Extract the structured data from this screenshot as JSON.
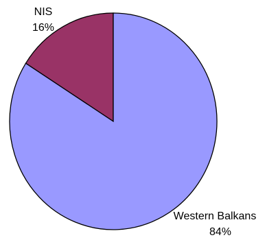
{
  "chart_data": {
    "type": "pie",
    "slices": [
      {
        "label": "NIS",
        "value": 16,
        "value_label": "16%",
        "color": "#993366"
      },
      {
        "label": "Western Balkans",
        "value": 84,
        "value_label": "84%",
        "color": "#9999ff"
      }
    ],
    "start": "12 o'clock",
    "direction": "counterclockwise for NIS, remainder clockwise",
    "legend": "none"
  }
}
